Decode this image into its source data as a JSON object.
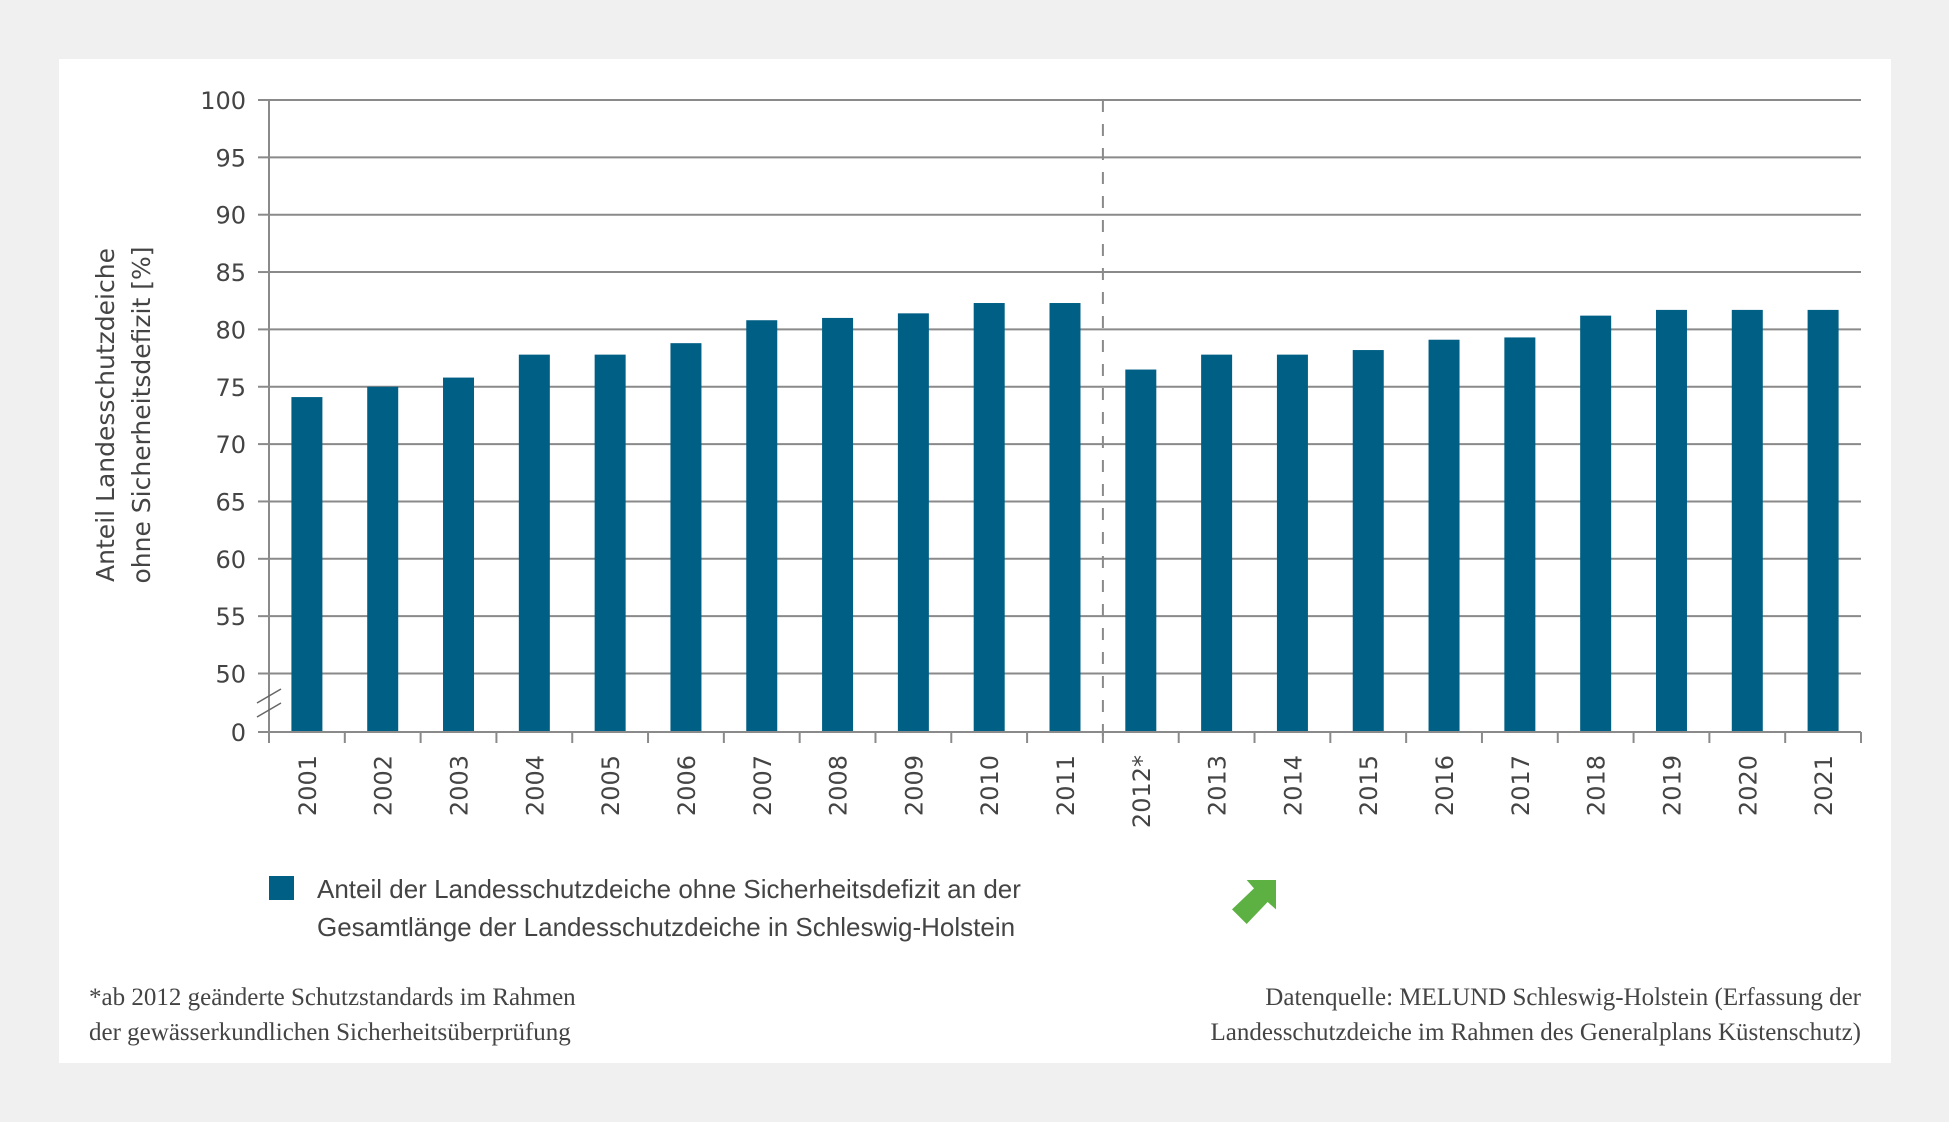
{
  "chart_data": {
    "type": "bar",
    "title": "",
    "xlabel": "",
    "ylabel": "Anteil Landesschutzdeiche ohne Sicherheitsdefizit [%]",
    "ylabel_lines": [
      "Anteil Landesschutzdeiche",
      "ohne Sicherheitsdefizit [%]"
    ],
    "categories": [
      "2001",
      "2002",
      "2003",
      "2004",
      "2005",
      "2006",
      "2007",
      "2008",
      "2009",
      "2010",
      "2011",
      "2012*",
      "2013",
      "2014",
      "2015",
      "2016",
      "2017",
      "2018",
      "2019",
      "2020",
      "2021"
    ],
    "series": [
      {
        "name": "Anteil der Landesschutzdeiche ohne Sicherheitsdefizit an der Gesamtlänge der Landesschutzdeiche in Schleswig-Holstein",
        "color": "#005f85",
        "values": [
          74.1,
          75.0,
          75.8,
          77.8,
          77.8,
          78.8,
          80.8,
          81.0,
          81.4,
          82.3,
          82.3,
          76.5,
          77.8,
          77.8,
          78.2,
          79.1,
          79.3,
          81.2,
          81.7,
          81.7,
          81.7
        ]
      }
    ],
    "y_ticks": [
      "100",
      "95",
      "90",
      "85",
      "80",
      "75",
      "70",
      "65",
      "60",
      "55",
      "50",
      "0"
    ],
    "y_tick_values": [
      100,
      95,
      90,
      85,
      80,
      75,
      70,
      65,
      60,
      55,
      50,
      0
    ],
    "ylim": [
      0,
      100
    ],
    "axis_break": [
      0,
      50
    ],
    "grid": true,
    "reference_line": {
      "between": [
        "2011",
        "2012*"
      ],
      "style": "dashed"
    },
    "legend_position": "bottom-left"
  },
  "legend": {
    "line1": "Anteil der Landesschutzdeiche ohne Sicherheitsdefizit an der",
    "line2": "Gesamtlänge der Landesschutzdeiche in Schleswig-Holstein",
    "trend_icon": "trend-up-arrow-icon",
    "trend_color": "#5cb142"
  },
  "footnote": {
    "line1": "*ab 2012 geänderte Schutzstandards im Rahmen",
    "line2": "der gewässerkundlichen Sicherheitsüberprüfung"
  },
  "source": {
    "line1": "Datenquelle: MELUND Schleswig-Holstein (Erfassung der",
    "line2": "Landesschutzdeiche im Rahmen des Generalplans Küstenschutz)"
  },
  "colors": {
    "background": "#f0f0f0",
    "panel": "#ffffff",
    "grid": "#8a8a8a",
    "text": "#444444"
  }
}
